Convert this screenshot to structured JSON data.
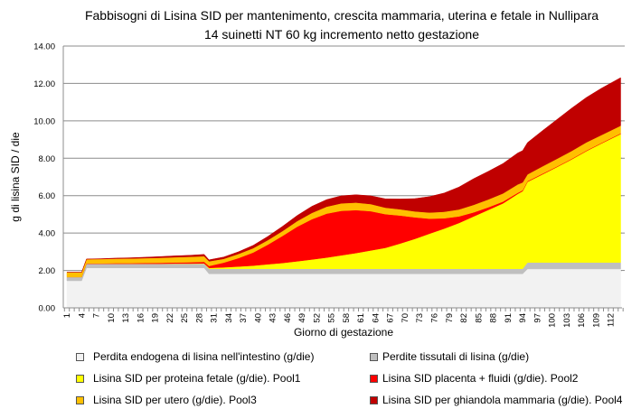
{
  "chart_data": {
    "type": "area",
    "stacked": true,
    "title": [
      "Fabbisogni di Lisina SID per mantenimento, crescita mammaria, uterina e fetale in Nullipara",
      "14 suinetti NT 60 kg incremento netto gestazione"
    ],
    "xlabel": "Giorno di gestazione",
    "ylabel": "g di lisina SID / die",
    "ylim": [
      0,
      14
    ],
    "yticks": [
      "0.00",
      "2.00",
      "4.00",
      "6.00",
      "8.00",
      "10.00",
      "12.00",
      "14.00"
    ],
    "xlim": [
      1,
      114
    ],
    "xticks": [
      1,
      4,
      7,
      10,
      13,
      16,
      19,
      22,
      25,
      28,
      31,
      34,
      37,
      40,
      43,
      46,
      49,
      52,
      55,
      58,
      61,
      64,
      67,
      70,
      73,
      76,
      79,
      82,
      85,
      88,
      91,
      94,
      97,
      100,
      103,
      106,
      109,
      112
    ],
    "grid": true,
    "legend_position": "bottom",
    "x": [
      1,
      4,
      5,
      8,
      11,
      14,
      17,
      20,
      23,
      26,
      29,
      30,
      33,
      36,
      39,
      42,
      45,
      48,
      51,
      54,
      57,
      60,
      63,
      66,
      69,
      72,
      75,
      78,
      81,
      84,
      87,
      90,
      93,
      94,
      95,
      98,
      101,
      104,
      107,
      110,
      114
    ],
    "series": [
      {
        "name": "Perdita endogena di lisina nell'intestino (g/die)",
        "color": "#f2f2f2",
        "values": [
          1.45,
          1.45,
          2.14,
          2.14,
          2.14,
          2.14,
          2.14,
          2.14,
          2.14,
          2.14,
          2.14,
          1.82,
          1.82,
          1.82,
          1.82,
          1.82,
          1.82,
          1.82,
          1.82,
          1.82,
          1.82,
          1.82,
          1.82,
          1.82,
          1.82,
          1.82,
          1.82,
          1.82,
          1.82,
          1.82,
          1.82,
          1.82,
          1.82,
          1.82,
          2.08,
          2.08,
          2.08,
          2.08,
          2.08,
          2.08,
          2.08
        ]
      },
      {
        "name": "Perdite tissutali di lisina (g/die)",
        "color": "#bfbfbf",
        "values": [
          0.2,
          0.2,
          0.22,
          0.22,
          0.22,
          0.22,
          0.22,
          0.22,
          0.22,
          0.22,
          0.22,
          0.27,
          0.27,
          0.27,
          0.27,
          0.27,
          0.27,
          0.27,
          0.27,
          0.27,
          0.27,
          0.27,
          0.27,
          0.27,
          0.27,
          0.27,
          0.27,
          0.27,
          0.27,
          0.27,
          0.27,
          0.27,
          0.27,
          0.27,
          0.35,
          0.35,
          0.35,
          0.35,
          0.35,
          0.35,
          0.35
        ]
      },
      {
        "name": "Lisina SID per proteina fetale (g/die). Pool1",
        "color": "#ffff00",
        "values": [
          0,
          0,
          0,
          0,
          0,
          0,
          0,
          0,
          0.01,
          0.01,
          0.02,
          0.05,
          0.08,
          0.12,
          0.17,
          0.24,
          0.31,
          0.4,
          0.5,
          0.6,
          0.72,
          0.84,
          0.98,
          1.12,
          1.35,
          1.6,
          1.88,
          2.15,
          2.45,
          2.8,
          3.15,
          3.5,
          4.0,
          4.15,
          4.31,
          4.7,
          5.1,
          5.51,
          5.95,
          6.35,
          6.87
        ]
      },
      {
        "name": "Lisina SID placenta + fluidi (g/die). Pool2",
        "color": "#ff0000",
        "values": [
          0,
          0,
          0.02,
          0.02,
          0.03,
          0.03,
          0.04,
          0.05,
          0.06,
          0.07,
          0.08,
          0.1,
          0.25,
          0.45,
          0.7,
          1.05,
          1.45,
          1.85,
          2.15,
          2.35,
          2.38,
          2.3,
          2.1,
          1.8,
          1.5,
          1.15,
          0.8,
          0.55,
          0.35,
          0.22,
          0.14,
          0.09,
          0.06,
          0.05,
          0.04,
          0.04,
          0.03,
          0.03,
          0.03,
          0.03,
          0.03
        ]
      },
      {
        "name": "Lisina SID per utero (g/die). Pool3",
        "color": "#ffc000",
        "values": [
          0.25,
          0.25,
          0.22,
          0.23,
          0.24,
          0.25,
          0.26,
          0.27,
          0.28,
          0.29,
          0.3,
          0.25,
          0.2,
          0.22,
          0.23,
          0.24,
          0.26,
          0.3,
          0.34,
          0.37,
          0.4,
          0.4,
          0.38,
          0.35,
          0.33,
          0.32,
          0.33,
          0.35,
          0.37,
          0.4,
          0.42,
          0.44,
          0.45,
          0.42,
          0.36,
          0.39,
          0.41,
          0.42,
          0.44,
          0.42,
          0.41
        ]
      },
      {
        "name": "Lisina SID per ghiandola mammaria (g/die). Pool4",
        "color": "#c00000",
        "values": [
          0,
          0,
          0.01,
          0.02,
          0.03,
          0.04,
          0.05,
          0.06,
          0.07,
          0.08,
          0.1,
          0.08,
          0.1,
          0.12,
          0.15,
          0.2,
          0.25,
          0.3,
          0.35,
          0.38,
          0.4,
          0.42,
          0.44,
          0.47,
          0.55,
          0.68,
          0.85,
          1.0,
          1.2,
          1.4,
          1.5,
          1.6,
          1.68,
          1.7,
          1.7,
          1.9,
          2.1,
          2.29,
          2.4,
          2.5,
          2.57
        ]
      }
    ]
  }
}
